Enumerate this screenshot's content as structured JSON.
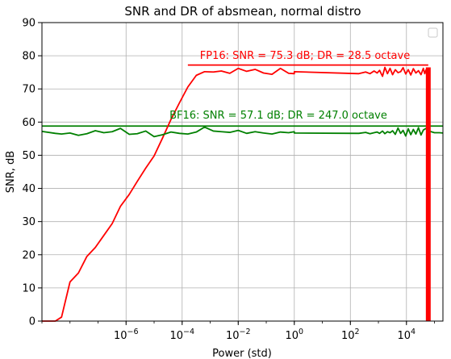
{
  "chart_data": {
    "type": "line",
    "title": "SNR and DR of absmean, normal distro",
    "xlabel": "Power (std)",
    "ylabel": "SNR, dB",
    "xscale": "log",
    "xlim": [
      1e-09,
      200000.0
    ],
    "ylim": [
      0,
      90
    ],
    "xticks": [
      {
        "value": 1e-06,
        "base": "10",
        "exp": "−6"
      },
      {
        "value": 0.0001,
        "base": "10",
        "exp": "−4"
      },
      {
        "value": 0.01,
        "base": "10",
        "exp": "−2"
      },
      {
        "value": 1,
        "base": "10",
        "exp": "0"
      },
      {
        "value": 100,
        "base": "10",
        "exp": "2"
      },
      {
        "value": 10000,
        "base": "10",
        "exp": "4"
      }
    ],
    "yticks": [
      0,
      10,
      20,
      30,
      40,
      50,
      60,
      70,
      80,
      90
    ],
    "grid": true,
    "legend": "top-right (empty)",
    "series": [
      {
        "color": "#ff0000",
        "x": [
          1e-09,
          3e-09,
          5e-09,
          1e-08,
          2e-08,
          4e-08,
          8e-08,
          1.6e-07,
          3.2e-07,
          6.3e-07,
          1.3e-06,
          2.5e-06,
          5e-06,
          1e-05,
          2e-05,
          4e-05,
          8e-05,
          0.00016,
          0.00032,
          0.00063,
          0.0013,
          0.0025,
          0.005,
          0.01,
          0.02,
          0.04,
          0.08,
          0.16,
          0.32,
          0.63,
          1,
          1,
          200,
          350,
          500,
          700,
          900,
          1100,
          1400,
          1700,
          2100,
          2600,
          3200,
          4000,
          5000,
          6200,
          7600,
          9400,
          11600,
          14300,
          17600,
          21700,
          26800,
          33000,
          40000,
          45000,
          50000,
          57000,
          60000,
          60000
        ],
        "y": [
          0,
          0,
          1.2,
          11.8,
          14.5,
          19.5,
          22.2,
          25.8,
          29.4,
          34.6,
          38.2,
          42.1,
          46.1,
          49.8,
          55.2,
          60.8,
          65.8,
          70.6,
          74.1,
          75.2,
          75.1,
          75.4,
          74.7,
          76.2,
          75.3,
          75.9,
          74.8,
          74.4,
          76.2,
          74.7,
          74.6,
          75.2,
          74.6,
          75.1,
          74.6,
          75.4,
          74.8,
          75.6,
          73.8,
          76.5,
          74.6,
          76.2,
          74.3,
          75.8,
          74.9,
          75.2,
          76.4,
          74.5,
          75.8,
          74.2,
          76.1,
          74.8,
          75.5,
          74.3,
          76.2,
          74.6,
          75.8,
          74.9,
          75.9,
          0
        ]
      },
      {
        "color": "#008000",
        "x": [
          1e-09,
          3e-09,
          5e-09,
          1e-08,
          2e-08,
          4e-08,
          8e-08,
          1.6e-07,
          3.2e-07,
          6.3e-07,
          1.3e-06,
          2.5e-06,
          5e-06,
          1e-05,
          2e-05,
          4e-05,
          8e-05,
          0.00016,
          0.00032,
          0.00063,
          0.0013,
          0.0025,
          0.005,
          0.01,
          0.02,
          0.04,
          0.08,
          0.16,
          0.32,
          0.63,
          1,
          1,
          200,
          350,
          500,
          700,
          900,
          1100,
          1400,
          1700,
          2100,
          2600,
          3200,
          4000,
          5000,
          6200,
          7600,
          9400,
          11600,
          14300,
          17600,
          21700,
          26800,
          33000,
          40000,
          50000,
          70000,
          100000,
          150000,
          200000
        ],
        "y": [
          57.2,
          56.6,
          56.4,
          56.7,
          56.0,
          56.5,
          57.4,
          56.8,
          57.1,
          58.1,
          56.3,
          56.5,
          57.3,
          55.6,
          56.2,
          57.0,
          56.6,
          56.4,
          57.0,
          58.5,
          57.3,
          57.1,
          56.9,
          57.5,
          56.6,
          57.1,
          56.7,
          56.4,
          57.0,
          56.8,
          57.1,
          56.7,
          56.6,
          56.9,
          56.5,
          56.8,
          57.0,
          56.6,
          57.3,
          56.5,
          57.1,
          56.8,
          57.4,
          56.3,
          58.2,
          56.6,
          57.5,
          55.8,
          58.0,
          56.2,
          57.8,
          56.4,
          58.3,
          56.1,
          57.6,
          58.1,
          57.2,
          56.8,
          56.8,
          56.7
        ]
      }
    ],
    "reference_lines": [
      {
        "color": "#ff0000",
        "y": 77.2,
        "x_from": 0.00016,
        "x_to": 60000,
        "label": "FP16: SNR = 75.3 dB; DR = 28.5 octave"
      },
      {
        "color": "#008000",
        "y": 58.8,
        "x_from": 1e-09,
        "x_to": 200000,
        "label": "BF16: SNR = 57.1 dB; DR = 247.0 octave"
      }
    ]
  }
}
